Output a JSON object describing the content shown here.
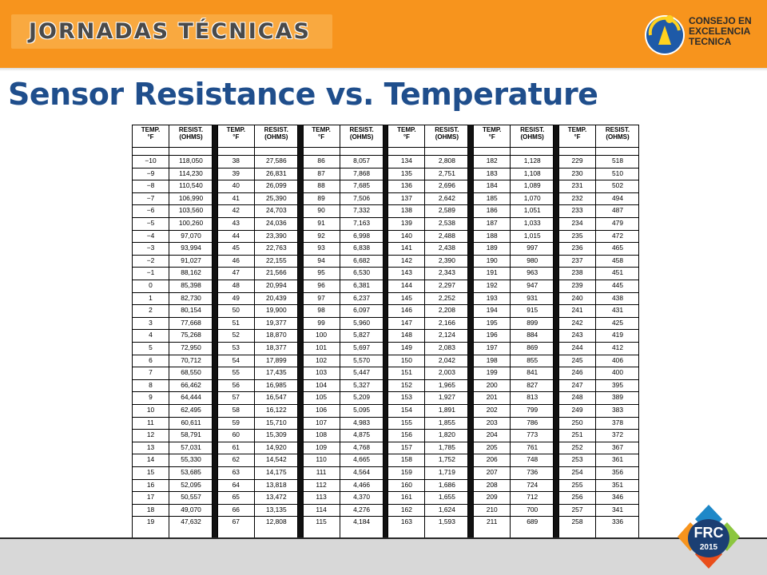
{
  "header": {
    "banner": "JORNADAS TÉCNICAS",
    "logo_lines": [
      "CONSEJO EN",
      "EXCELENCIA",
      "TECNICA"
    ]
  },
  "title": "Sensor Resistance vs. Temperature",
  "table": {
    "header_temp": [
      "TEMP.",
      "°F"
    ],
    "header_resist": [
      "RESIST.",
      "(OHMS)"
    ],
    "groups": [
      [
        [
          "−10",
          "118,050"
        ],
        [
          "−9",
          "114,230"
        ],
        [
          "−8",
          "110,540"
        ],
        [
          "−7",
          "106,990"
        ],
        [
          "−6",
          "103,560"
        ],
        [
          "−5",
          "100,260"
        ],
        [
          "−4",
          "97,070"
        ],
        [
          "−3",
          "93,994"
        ],
        [
          "−2",
          "91,027"
        ],
        [
          "−1",
          "88,162"
        ],
        [
          "0",
          "85,398"
        ],
        [
          "1",
          "82,730"
        ],
        [
          "2",
          "80,154"
        ],
        [
          "3",
          "77,668"
        ],
        [
          "4",
          "75,268"
        ],
        [
          "5",
          "72,950"
        ],
        [
          "6",
          "70,712"
        ],
        [
          "7",
          "68,550"
        ],
        [
          "8",
          "66,462"
        ],
        [
          "9",
          "64,444"
        ],
        [
          "10",
          "62,495"
        ],
        [
          "11",
          "60,611"
        ],
        [
          "12",
          "58,791"
        ],
        [
          "13",
          "57,031"
        ],
        [
          "14",
          "55,330"
        ],
        [
          "15",
          "53,685"
        ],
        [
          "16",
          "52,095"
        ],
        [
          "17",
          "50,557"
        ],
        [
          "18",
          "49,070"
        ],
        [
          "19",
          "47,632"
        ]
      ],
      [
        [
          "38",
          "27,586"
        ],
        [
          "39",
          "26,831"
        ],
        [
          "40",
          "26,099"
        ],
        [
          "41",
          "25,390"
        ],
        [
          "42",
          "24,703"
        ],
        [
          "43",
          "24,036"
        ],
        [
          "44",
          "23,390"
        ],
        [
          "45",
          "22,763"
        ],
        [
          "46",
          "22,155"
        ],
        [
          "47",
          "21,566"
        ],
        [
          "48",
          "20,994"
        ],
        [
          "49",
          "20,439"
        ],
        [
          "50",
          "19,900"
        ],
        [
          "51",
          "19,377"
        ],
        [
          "52",
          "18,870"
        ],
        [
          "53",
          "18,377"
        ],
        [
          "54",
          "17,899"
        ],
        [
          "55",
          "17,435"
        ],
        [
          "56",
          "16,985"
        ],
        [
          "57",
          "16,547"
        ],
        [
          "58",
          "16,122"
        ],
        [
          "59",
          "15,710"
        ],
        [
          "60",
          "15,309"
        ],
        [
          "61",
          "14,920"
        ],
        [
          "62",
          "14,542"
        ],
        [
          "63",
          "14,175"
        ],
        [
          "64",
          "13,818"
        ],
        [
          "65",
          "13,472"
        ],
        [
          "66",
          "13,135"
        ],
        [
          "67",
          "12,808"
        ]
      ],
      [
        [
          "86",
          "8,057"
        ],
        [
          "87",
          "7,868"
        ],
        [
          "88",
          "7,685"
        ],
        [
          "89",
          "7,506"
        ],
        [
          "90",
          "7,332"
        ],
        [
          "91",
          "7,163"
        ],
        [
          "92",
          "6,998"
        ],
        [
          "93",
          "6,838"
        ],
        [
          "94",
          "6,682"
        ],
        [
          "95",
          "6,530"
        ],
        [
          "96",
          "6,381"
        ],
        [
          "97",
          "6,237"
        ],
        [
          "98",
          "6,097"
        ],
        [
          "99",
          "5,960"
        ],
        [
          "100",
          "5,827"
        ],
        [
          "101",
          "5,697"
        ],
        [
          "102",
          "5,570"
        ],
        [
          "103",
          "5,447"
        ],
        [
          "104",
          "5,327"
        ],
        [
          "105",
          "5,209"
        ],
        [
          "106",
          "5,095"
        ],
        [
          "107",
          "4,983"
        ],
        [
          "108",
          "4,875"
        ],
        [
          "109",
          "4,768"
        ],
        [
          "110",
          "4,665"
        ],
        [
          "111",
          "4,564"
        ],
        [
          "112",
          "4,466"
        ],
        [
          "113",
          "4,370"
        ],
        [
          "114",
          "4,276"
        ],
        [
          "115",
          "4,184"
        ]
      ],
      [
        [
          "134",
          "2,808"
        ],
        [
          "135",
          "2,751"
        ],
        [
          "136",
          "2,696"
        ],
        [
          "137",
          "2,642"
        ],
        [
          "138",
          "2,589"
        ],
        [
          "139",
          "2,538"
        ],
        [
          "140",
          "2,488"
        ],
        [
          "141",
          "2,438"
        ],
        [
          "142",
          "2,390"
        ],
        [
          "143",
          "2,343"
        ],
        [
          "144",
          "2,297"
        ],
        [
          "145",
          "2,252"
        ],
        [
          "146",
          "2,208"
        ],
        [
          "147",
          "2,166"
        ],
        [
          "148",
          "2,124"
        ],
        [
          "149",
          "2,083"
        ],
        [
          "150",
          "2,042"
        ],
        [
          "151",
          "2,003"
        ],
        [
          "152",
          "1,965"
        ],
        [
          "153",
          "1,927"
        ],
        [
          "154",
          "1,891"
        ],
        [
          "155",
          "1,855"
        ],
        [
          "156",
          "1,820"
        ],
        [
          "157",
          "1,785"
        ],
        [
          "158",
          "1,752"
        ],
        [
          "159",
          "1,719"
        ],
        [
          "160",
          "1,686"
        ],
        [
          "161",
          "1,655"
        ],
        [
          "162",
          "1,624"
        ],
        [
          "163",
          "1,593"
        ]
      ],
      [
        [
          "182",
          "1,128"
        ],
        [
          "183",
          "1,108"
        ],
        [
          "184",
          "1,089"
        ],
        [
          "185",
          "1,070"
        ],
        [
          "186",
          "1,051"
        ],
        [
          "187",
          "1,033"
        ],
        [
          "188",
          "1,015"
        ],
        [
          "189",
          "997"
        ],
        [
          "190",
          "980"
        ],
        [
          "191",
          "963"
        ],
        [
          "192",
          "947"
        ],
        [
          "193",
          "931"
        ],
        [
          "194",
          "915"
        ],
        [
          "195",
          "899"
        ],
        [
          "196",
          "884"
        ],
        [
          "197",
          "869"
        ],
        [
          "198",
          "855"
        ],
        [
          "199",
          "841"
        ],
        [
          "200",
          "827"
        ],
        [
          "201",
          "813"
        ],
        [
          "202",
          "799"
        ],
        [
          "203",
          "786"
        ],
        [
          "204",
          "773"
        ],
        [
          "205",
          "761"
        ],
        [
          "206",
          "748"
        ],
        [
          "207",
          "736"
        ],
        [
          "208",
          "724"
        ],
        [
          "209",
          "712"
        ],
        [
          "210",
          "700"
        ],
        [
          "211",
          "689"
        ]
      ],
      [
        [
          "229",
          "518"
        ],
        [
          "230",
          "510"
        ],
        [
          "231",
          "502"
        ],
        [
          "232",
          "494"
        ],
        [
          "233",
          "487"
        ],
        [
          "234",
          "479"
        ],
        [
          "235",
          "472"
        ],
        [
          "236",
          "465"
        ],
        [
          "237",
          "458"
        ],
        [
          "238",
          "451"
        ],
        [
          "239",
          "445"
        ],
        [
          "240",
          "438"
        ],
        [
          "241",
          "431"
        ],
        [
          "242",
          "425"
        ],
        [
          "243",
          "419"
        ],
        [
          "244",
          "412"
        ],
        [
          "245",
          "406"
        ],
        [
          "246",
          "400"
        ],
        [
          "247",
          "395"
        ],
        [
          "248",
          "389"
        ],
        [
          "249",
          "383"
        ],
        [
          "250",
          "378"
        ],
        [
          "251",
          "372"
        ],
        [
          "252",
          "367"
        ],
        [
          "253",
          "361"
        ],
        [
          "254",
          "356"
        ],
        [
          "255",
          "351"
        ],
        [
          "256",
          "346"
        ],
        [
          "257",
          "341"
        ],
        [
          "258",
          "336"
        ]
      ]
    ]
  },
  "badge": {
    "text": "FRC",
    "year": "2015"
  },
  "colors": {
    "header_orange": "#f7941d",
    "title_blue": "#1f4e8c"
  }
}
